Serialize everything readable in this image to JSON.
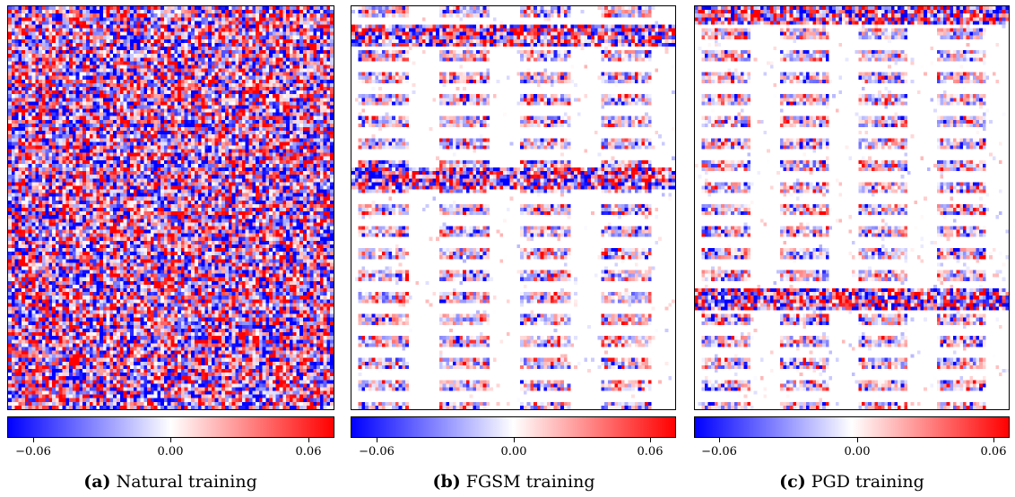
{
  "chart_data": [
    {
      "type": "heatmap",
      "caption_tag": "(a)",
      "caption_text": "Natural training",
      "colormap": [
        "#0000ff",
        "#ffffff",
        "#ff0000"
      ],
      "colorbar": {
        "ticks": [
          -0.06,
          0.0,
          0.06
        ],
        "tick_labels": [
          "−0.06",
          "0.00",
          "0.06"
        ],
        "range": [
          -0.08,
          0.08
        ]
      },
      "pattern": "dense-random"
    },
    {
      "type": "heatmap",
      "caption_tag": "(b)",
      "caption_text": "FGSM training",
      "colormap": [
        "#0000ff",
        "#ffffff",
        "#ff0000"
      ],
      "colorbar": {
        "ticks": [
          -0.06,
          0.0,
          0.06
        ],
        "tick_labels": [
          "−0.06",
          "0.00",
          "0.06"
        ],
        "range": [
          -0.08,
          0.08
        ]
      },
      "pattern": "sparse-blocks-with-dense-rows"
    },
    {
      "type": "heatmap",
      "caption_tag": "(c)",
      "caption_text": "PGD training",
      "colormap": [
        "#0000ff",
        "#ffffff",
        "#ff0000"
      ],
      "colorbar": {
        "ticks": [
          -0.06,
          0.0,
          0.06
        ],
        "tick_labels": [
          "−0.06",
          "0.00",
          "0.06"
        ],
        "range": [
          -0.08,
          0.08
        ]
      },
      "pattern": "sparse-blocks-with-dense-rows"
    }
  ]
}
